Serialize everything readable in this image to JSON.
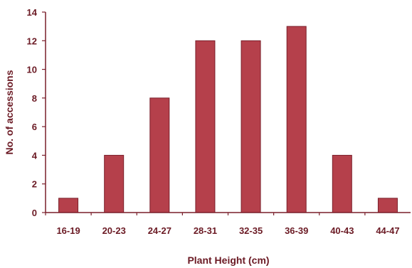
{
  "chart_data": {
    "type": "bar",
    "title": "",
    "xlabel": "Plant Height (cm)",
    "ylabel": "No. of accessions",
    "categories": [
      "16-19",
      "20-23",
      "24-27",
      "28-31",
      "32-35",
      "36-39",
      "40-43",
      "44-47"
    ],
    "values": [
      1,
      4,
      8,
      12,
      12,
      13,
      4,
      1
    ],
    "ylim": [
      0,
      14
    ],
    "yticks": [
      0,
      2,
      4,
      6,
      8,
      10,
      12,
      14
    ],
    "grid": false,
    "legend": "none",
    "colors": {
      "bar_fill": "#b5404b",
      "bar_stroke": "#7a1f2a",
      "axis": "#7a1f2a",
      "text": "#6b1a24"
    }
  }
}
